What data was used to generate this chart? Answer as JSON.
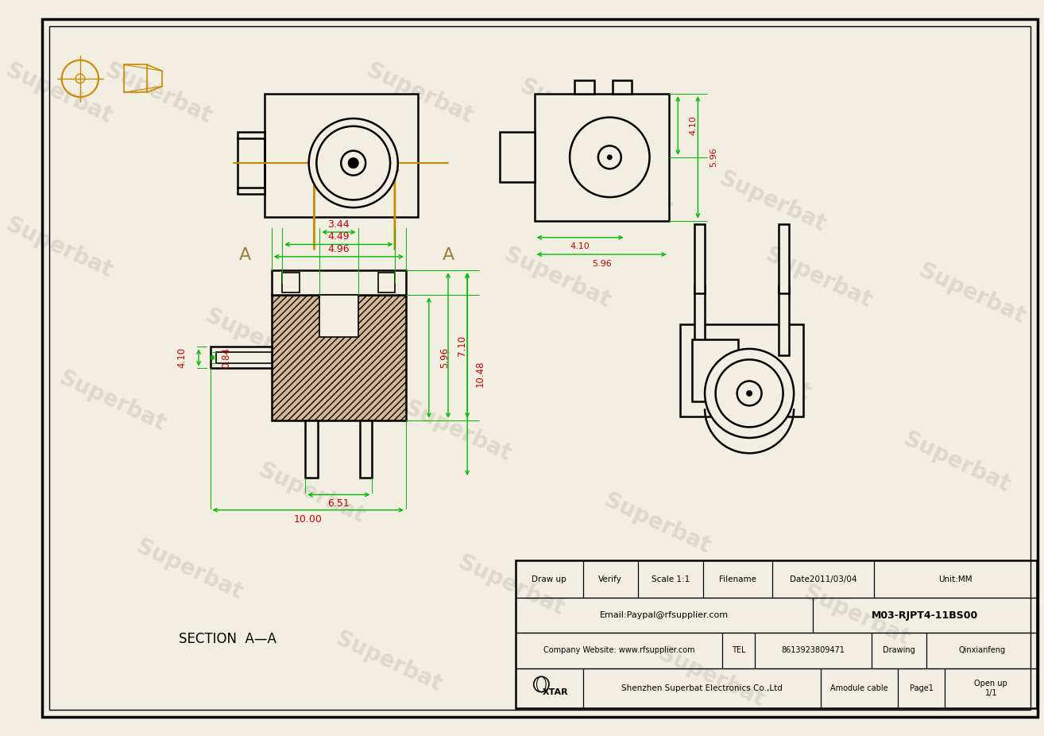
{
  "bg_color": "#f2efe2",
  "line_color": "#000000",
  "green_dim": "#00bb00",
  "red_dim": "#cc0000",
  "orange_color": "#cc8800",
  "hatch_color": "#d4b896",
  "watermark_color": "#d0ccc0",
  "section_label": "SECTION  A—A",
  "table": {
    "row1": [
      "Draw up",
      "Verify",
      "Scale 1:1",
      "Filename",
      "Date2011/03/04",
      "Unit:MM"
    ],
    "row2_left": "Email:Paypal@rfsupplier.com",
    "row2_right": "M03-RJPT4-11BS00",
    "row3_left": "Company Website: www.rfsupplier.com",
    "row3_tel": "TEL",
    "row3_tel_num": "8613923809471",
    "row3_drawing": "Drawing",
    "row3_who": "Qinxianfeng",
    "row4_logo": "XTAR",
    "row4_company": "Shenzhen Superbat Electronics Co.,Ltd",
    "row4_product": "Amodule cable",
    "row4_page": "Page1",
    "row4_open": "Open up\n1/1"
  }
}
